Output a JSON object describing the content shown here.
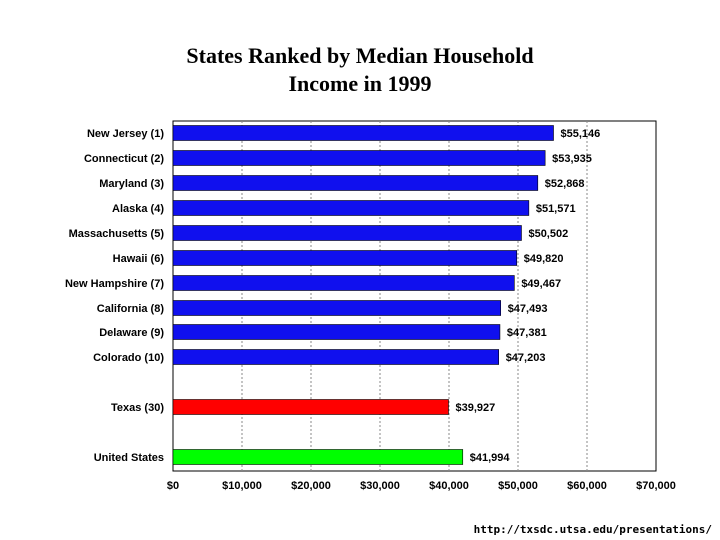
{
  "chart_data": {
    "type": "bar",
    "orientation": "horizontal",
    "title_lines": [
      "States Ranked by Median Household",
      "Income in 1999"
    ],
    "categories": [
      "New Jersey (1)",
      "Connecticut (2)",
      "Maryland (3)",
      "Alaska (4)",
      "Massachusetts (5)",
      "Hawaii (6)",
      "New Hampshire (7)",
      "California (8)",
      "Delaware (9)",
      "Colorado (10)",
      "Texas (30)",
      "United States"
    ],
    "values": [
      55146,
      53935,
      52868,
      51571,
      50502,
      49820,
      49467,
      47493,
      47381,
      47203,
      39927,
      41994
    ],
    "value_labels": [
      "$55,146",
      "$53,935",
      "$52,868",
      "$51,571",
      "$50,502",
      "$49,820",
      "$49,467",
      "$47,493",
      "$47,381",
      "$47,203",
      "$39,927",
      "$41,994"
    ],
    "bar_colors": [
      "#1010ee",
      "#1010ee",
      "#1010ee",
      "#1010ee",
      "#1010ee",
      "#1010ee",
      "#1010ee",
      "#1010ee",
      "#1010ee",
      "#1010ee",
      "#ff0000",
      "#00ff00"
    ],
    "xlim": [
      0,
      70000
    ],
    "xticks": [
      0,
      10000,
      20000,
      30000,
      40000,
      50000,
      60000,
      70000
    ],
    "xtick_labels": [
      "$0",
      "$10,000",
      "$20,000",
      "$30,000",
      "$40,000",
      "$50,000",
      "$60,000",
      "$70,000"
    ],
    "grid": "vertical-dashed",
    "legend": "none"
  },
  "source_text": "http://txsdc.utsa.edu/presentations/"
}
